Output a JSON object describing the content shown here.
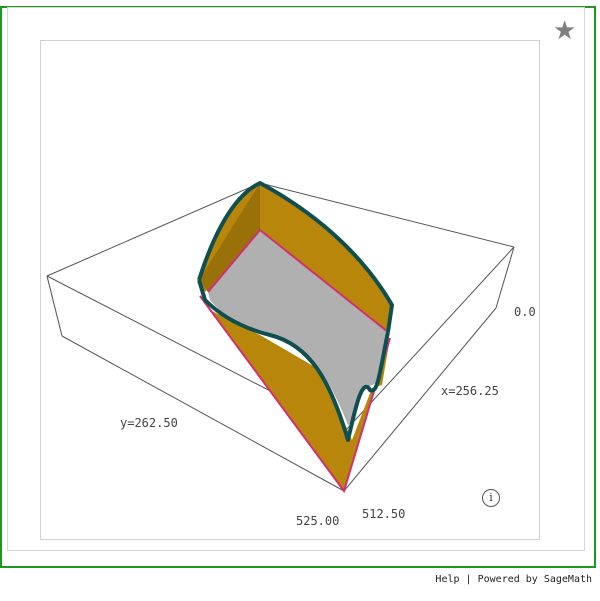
{
  "viewer": {
    "star_icon": "star-icon",
    "info_icon": "info-icon",
    "info_glyph": "i",
    "colors": {
      "frame": "#1d9a1d",
      "surface_fill": "#b8860b",
      "surface_edge": "#0f4f4f",
      "cut_plane": "#b0b0b0",
      "cut_edge": "#d03070",
      "box_edge": "#555555"
    }
  },
  "axes": {
    "x_label": "x=256.25",
    "y_label": "y=262.50",
    "tick_x_max": "512.50",
    "tick_y_max": "525.00",
    "tick_z": "0.0"
  },
  "footer": {
    "help": "Help",
    "separator": "|",
    "powered": "Powered by SageMath"
  }
}
